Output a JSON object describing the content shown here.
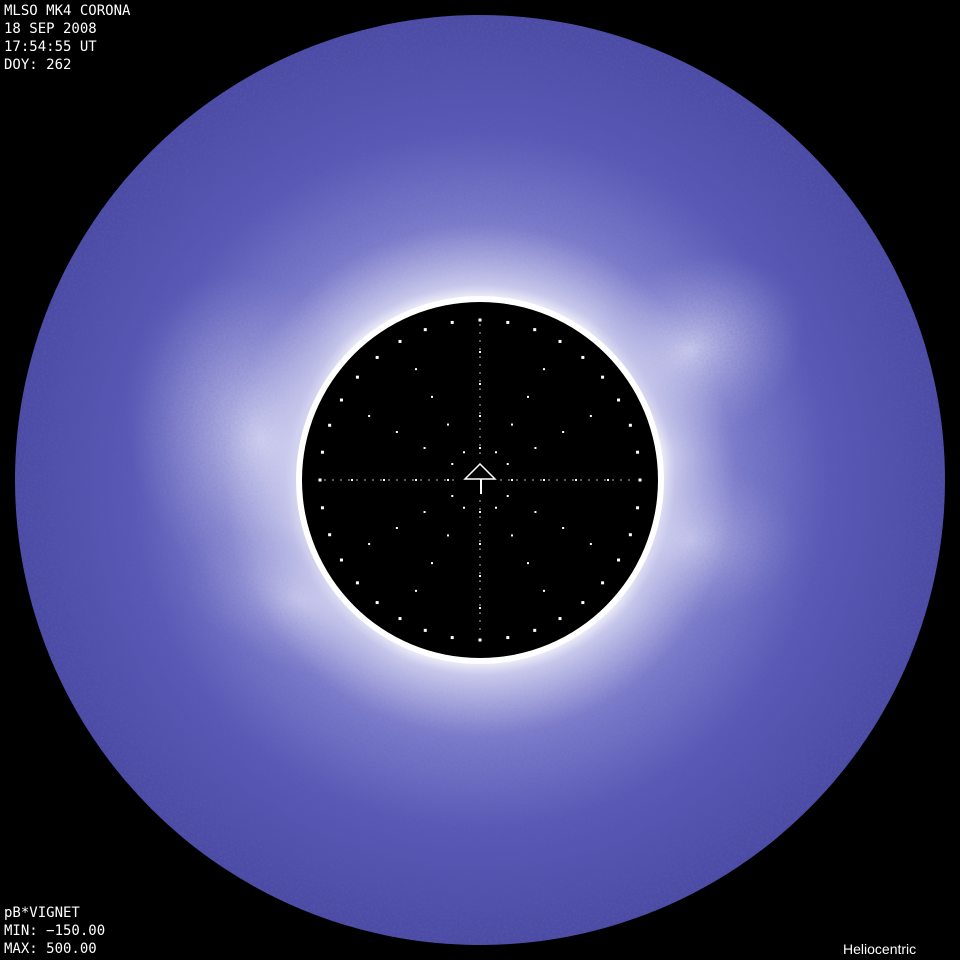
{
  "header": {
    "instrument": "MLSO MK4 CORONA",
    "date": "18 SEP 2008",
    "time": "17:54:55 UT",
    "doy": "DOY: 262"
  },
  "footer": {
    "product": "pB*VIGNET",
    "min": "MIN: −150.00",
    "max": "MAX: 500.00",
    "coordinate_system": "Heliocentric"
  },
  "image": {
    "corona_color": "#5656b8",
    "background_color": "#000000",
    "occulter_color": "#000000",
    "limb_ring_color": "#ffffff",
    "north_marker_icon": "north-arrow-icon"
  }
}
